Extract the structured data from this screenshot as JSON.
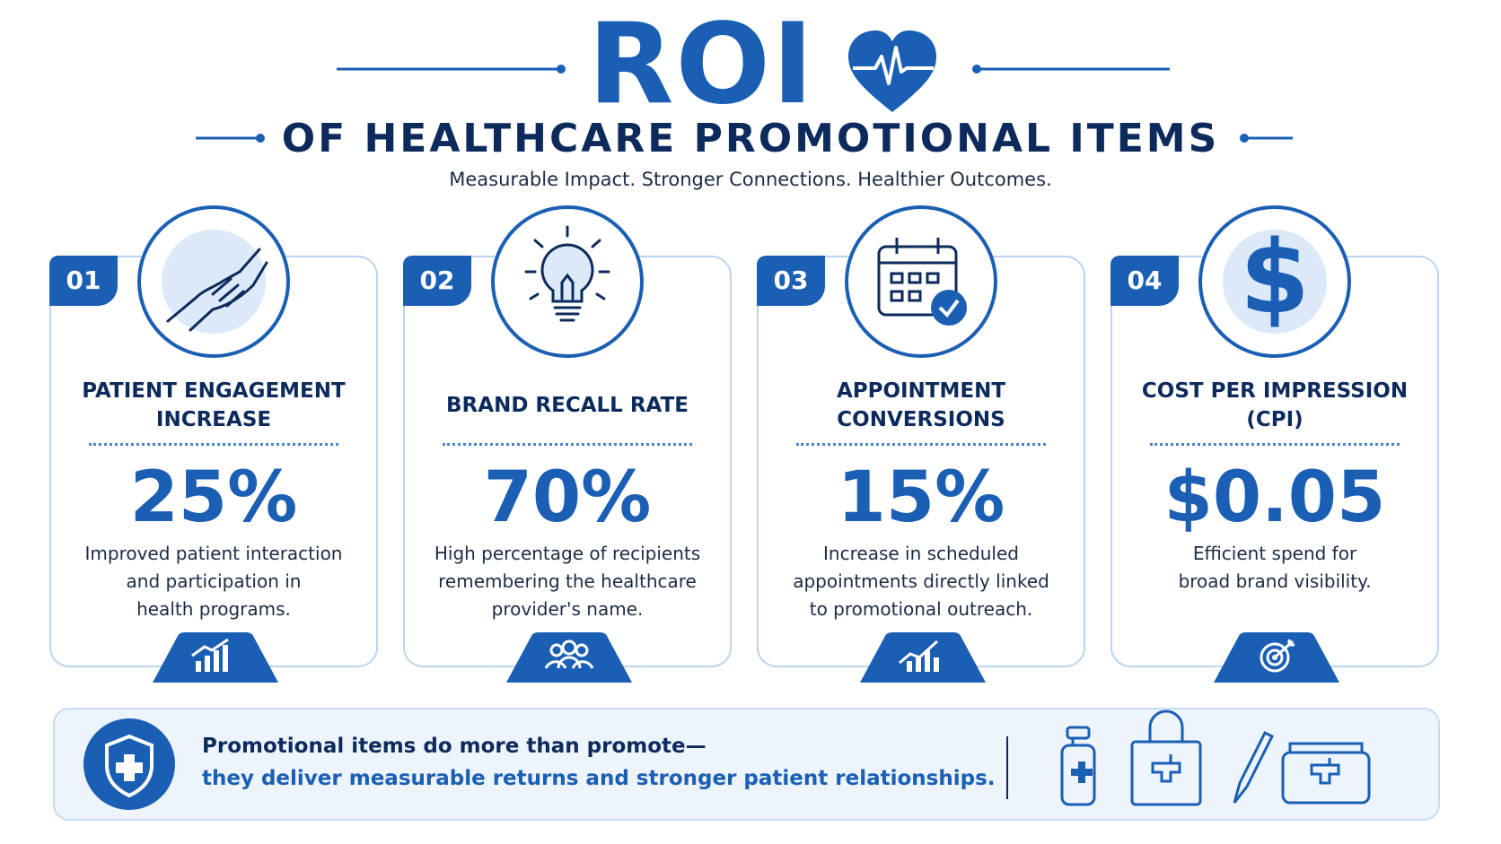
{
  "header": {
    "title": "ROI",
    "subtitle": "OF HEALTHCARE PROMOTIONAL ITEMS",
    "tagline": "Measurable Impact. Stronger Connections. Healthier Outcomes."
  },
  "cards": [
    {
      "number": "01",
      "title": [
        "PATIENT ENGAGEMENT",
        "INCREASE"
      ],
      "value": "25%",
      "description": [
        "Improved patient interaction",
        "and participation in",
        "health programs."
      ]
    },
    {
      "number": "02",
      "title": [
        "BRAND RECALL RATE"
      ],
      "value": "70%",
      "description": [
        "High percentage of recipients",
        "remembering the healthcare",
        "provider's name."
      ]
    },
    {
      "number": "03",
      "title": [
        "APPOINTMENT",
        "CONVERSIONS"
      ],
      "value": "15%",
      "description": [
        "Increase in scheduled",
        "appointments directly linked",
        "to promotional outreach."
      ]
    },
    {
      "number": "04",
      "title": [
        "COST PER IMPRESSION",
        "(CPI)"
      ],
      "value": "$0.05",
      "description": [
        "Efficient spend for",
        "broad brand visibility."
      ]
    }
  ],
  "footer": {
    "line1": "Promotional items do more than promote—",
    "line2": "they deliver measurable  returns and stronger patient relationships."
  }
}
